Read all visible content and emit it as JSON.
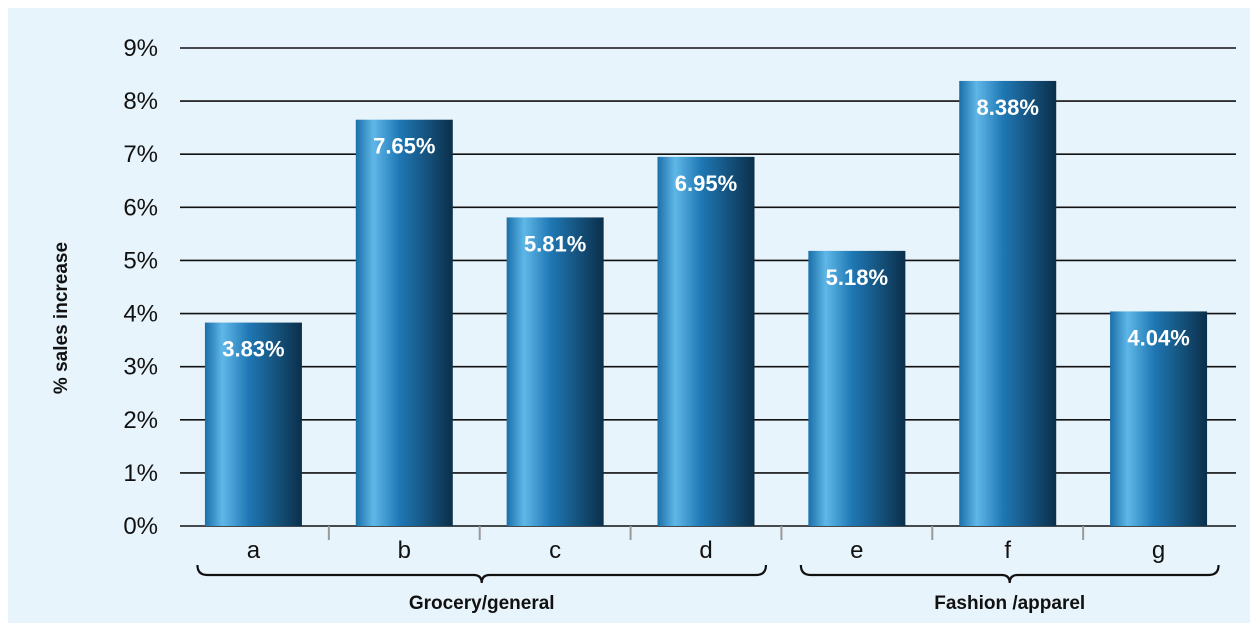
{
  "colors": {
    "background": "#e8f4fc",
    "bar_light": "#5fb7e8",
    "bar_mid": "#1f78b4",
    "bar_dark": "#0b2f4a",
    "gridline": "#111111",
    "value_text": "#ffffff"
  },
  "chart_data": {
    "type": "bar",
    "ylabel": "% sales increase",
    "ylim": [
      0,
      9
    ],
    "yticks": [
      {
        "value": 0,
        "label": "0%"
      },
      {
        "value": 1,
        "label": "1%"
      },
      {
        "value": 2,
        "label": "2%"
      },
      {
        "value": 3,
        "label": "3%"
      },
      {
        "value": 4,
        "label": "4%"
      },
      {
        "value": 5,
        "label": "5%"
      },
      {
        "value": 6,
        "label": "6%"
      },
      {
        "value": 7,
        "label": "7%"
      },
      {
        "value": 8,
        "label": "8%"
      },
      {
        "value": 9,
        "label": "9%"
      }
    ],
    "grid": true,
    "categories": [
      "a",
      "b",
      "c",
      "d",
      "e",
      "f",
      "g"
    ],
    "values": [
      3.83,
      7.65,
      5.81,
      6.95,
      5.18,
      8.38,
      4.04
    ],
    "value_labels": [
      "3.83%",
      "7.65%",
      "5.81%",
      "6.95%",
      "5.18%",
      "8.38%",
      "4.04%"
    ],
    "groups": [
      {
        "label": "Grocery/general",
        "categories": [
          "a",
          "b",
          "c",
          "d"
        ]
      },
      {
        "label": "Fashion /apparel",
        "categories": [
          "e",
          "f",
          "g"
        ]
      }
    ]
  }
}
